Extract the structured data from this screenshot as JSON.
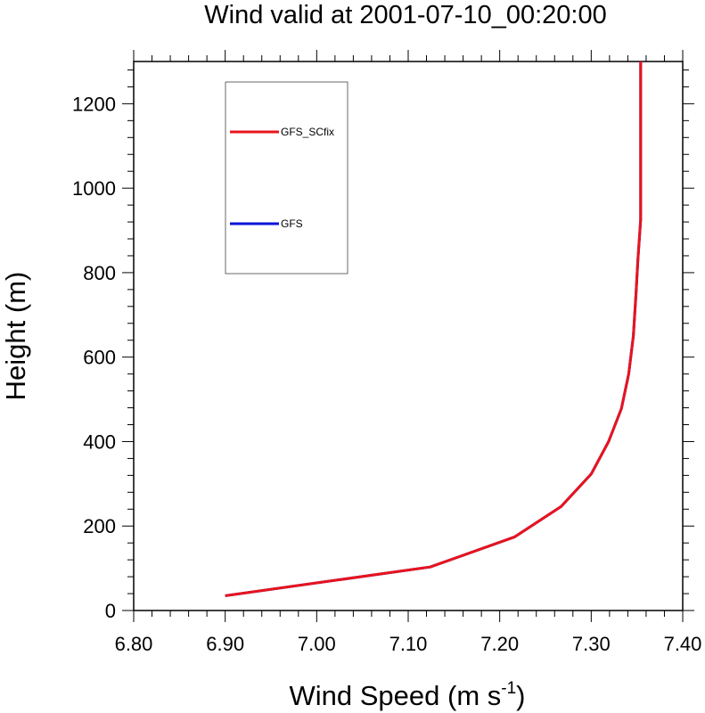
{
  "chart_data": {
    "type": "line",
    "title": "Wind valid at 2001-07-10_00:20:00",
    "xlabel": "Wind Speed (m s",
    "xlabel_superscript": "-1",
    "xlabel_suffix": ")",
    "ylabel": "Height (m)",
    "xlim": [
      6.8,
      7.4
    ],
    "ylim": [
      0,
      1300
    ],
    "x_ticks": [
      "6.80",
      "6.90",
      "7.00",
      "7.10",
      "7.20",
      "7.30",
      "7.40"
    ],
    "y_ticks": [
      "0",
      "200",
      "400",
      "600",
      "800",
      "1000",
      "1200"
    ],
    "grid": false,
    "legend_position": "top-left",
    "series": [
      {
        "name": "GFS_SCfix",
        "color": "#e8141c",
        "points": [
          [
            6.9,
            35
          ],
          [
            7.124,
            103
          ],
          [
            7.216,
            174
          ],
          [
            7.267,
            246
          ],
          [
            7.3,
            323
          ],
          [
            7.319,
            400
          ],
          [
            7.333,
            478
          ],
          [
            7.341,
            560
          ],
          [
            7.346,
            650
          ],
          [
            7.349,
            750
          ],
          [
            7.351,
            830
          ],
          [
            7.354,
            925
          ],
          [
            7.354,
            1000
          ],
          [
            7.354,
            1100
          ],
          [
            7.354,
            1200
          ],
          [
            7.354,
            1300
          ]
        ]
      },
      {
        "name": "GFS",
        "color": "#0a14d8",
        "points": [
          [
            6.9,
            35
          ],
          [
            7.124,
            103
          ],
          [
            7.216,
            174
          ],
          [
            7.267,
            246
          ],
          [
            7.3,
            323
          ],
          [
            7.319,
            400
          ],
          [
            7.333,
            478
          ],
          [
            7.341,
            560
          ],
          [
            7.346,
            650
          ],
          [
            7.349,
            750
          ],
          [
            7.351,
            830
          ],
          [
            7.354,
            925
          ],
          [
            7.354,
            1000
          ],
          [
            7.354,
            1100
          ],
          [
            7.354,
            1200
          ],
          [
            7.354,
            1300
          ]
        ]
      }
    ],
    "legend_draw_order": [
      "GFS_SCfix",
      "GFS"
    ],
    "legend_series_order": [
      "GFS",
      "GFS_SCfix"
    ]
  }
}
